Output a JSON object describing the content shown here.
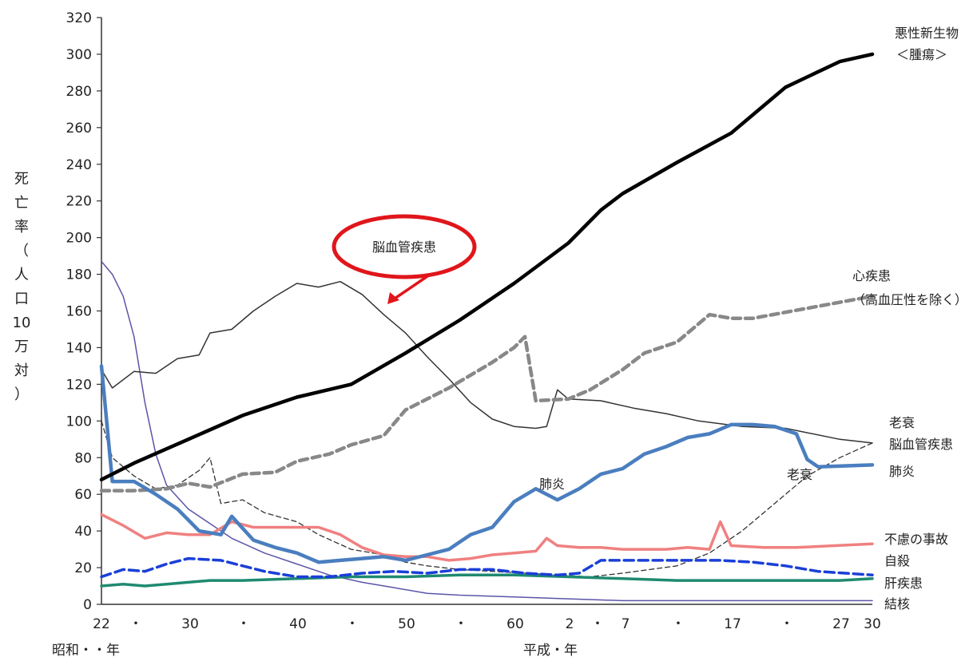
{
  "chart_data": {
    "type": "line",
    "ylabel": "死亡率（人口10万対）",
    "ylim": [
      0,
      320
    ],
    "yticks": [
      0,
      20,
      40,
      60,
      80,
      100,
      120,
      140,
      160,
      180,
      200,
      220,
      240,
      260,
      280,
      300,
      320
    ],
    "x_tick_labels": [
      "22",
      "・",
      "30",
      "・",
      "40",
      "・",
      "50",
      "・",
      "60",
      "2",
      "・",
      "7",
      "・",
      "17",
      "・",
      "27",
      "30"
    ],
    "x_era_labels": [
      "昭和・・年",
      "平成・年"
    ],
    "callout": "脳血管疾患",
    "series": [
      {
        "name": "悪性新生物<腫瘍>",
        "color": "#000000",
        "width": 4.5,
        "dash": "",
        "points": [
          [
            1947,
            68
          ],
          [
            1950,
            77
          ],
          [
            1955,
            90
          ],
          [
            1960,
            103
          ],
          [
            1965,
            113
          ],
          [
            1970,
            120
          ],
          [
            1975,
            137
          ],
          [
            1980,
            155
          ],
          [
            1985,
            175
          ],
          [
            1990,
            197
          ],
          [
            1993,
            215
          ],
          [
            1995,
            224
          ],
          [
            2000,
            241
          ],
          [
            2005,
            257
          ],
          [
            2010,
            282
          ],
          [
            2015,
            296
          ],
          [
            2018,
            300
          ]
        ]
      },
      {
        "name": "心疾患（高血圧性を除く）",
        "color": "#888888",
        "width": 4.5,
        "dash": "10,6",
        "points": [
          [
            1947,
            62
          ],
          [
            1950,
            62
          ],
          [
            1953,
            63
          ],
          [
            1955,
            66
          ],
          [
            1957,
            64
          ],
          [
            1960,
            71
          ],
          [
            1963,
            72
          ],
          [
            1965,
            78
          ],
          [
            1968,
            82
          ],
          [
            1970,
            87
          ],
          [
            1973,
            92
          ],
          [
            1975,
            106
          ],
          [
            1977,
            112
          ],
          [
            1979,
            118
          ],
          [
            1981,
            125
          ],
          [
            1983,
            132
          ],
          [
            1985,
            140
          ],
          [
            1986,
            146
          ],
          [
            1987,
            111
          ],
          [
            1990,
            112
          ],
          [
            1992,
            117
          ],
          [
            1995,
            128
          ],
          [
            1997,
            137
          ],
          [
            2000,
            143
          ],
          [
            2003,
            158
          ],
          [
            2005,
            156
          ],
          [
            2007,
            156
          ],
          [
            2018,
            168
          ]
        ]
      },
      {
        "name": "脳血管疾患",
        "color": "#333333",
        "width": 1.5,
        "dash": "",
        "points": [
          [
            1947,
            128
          ],
          [
            1948,
            118
          ],
          [
            1950,
            127
          ],
          [
            1952,
            126
          ],
          [
            1954,
            134
          ],
          [
            1956,
            136
          ],
          [
            1957,
            148
          ],
          [
            1959,
            150
          ],
          [
            1961,
            160
          ],
          [
            1963,
            168
          ],
          [
            1965,
            175
          ],
          [
            1967,
            173
          ],
          [
            1969,
            176
          ],
          [
            1971,
            169
          ],
          [
            1973,
            158
          ],
          [
            1975,
            148
          ],
          [
            1977,
            135
          ],
          [
            1979,
            123
          ],
          [
            1981,
            110
          ],
          [
            1983,
            101
          ],
          [
            1985,
            97
          ],
          [
            1987,
            96
          ],
          [
            1988,
            97
          ],
          [
            1989,
            117
          ],
          [
            1990,
            112
          ],
          [
            1993,
            111
          ],
          [
            1996,
            107
          ],
          [
            1999,
            104
          ],
          [
            2002,
            100
          ],
          [
            2006,
            97
          ],
          [
            2010,
            96
          ],
          [
            2015,
            90
          ],
          [
            2018,
            88
          ]
        ]
      },
      {
        "name": "肺炎",
        "color": "#4a7ebf",
        "width": 4.5,
        "dash": "",
        "points": [
          [
            1947,
            130
          ],
          [
            1948,
            67
          ],
          [
            1950,
            67
          ],
          [
            1952,
            60
          ],
          [
            1954,
            52
          ],
          [
            1956,
            40
          ],
          [
            1958,
            38
          ],
          [
            1959,
            48
          ],
          [
            1961,
            35
          ],
          [
            1963,
            31
          ],
          [
            1965,
            28
          ],
          [
            1967,
            23
          ],
          [
            1969,
            24
          ],
          [
            1971,
            25
          ],
          [
            1973,
            26
          ],
          [
            1975,
            24
          ],
          [
            1977,
            27
          ],
          [
            1979,
            30
          ],
          [
            1981,
            38
          ],
          [
            1983,
            42
          ],
          [
            1985,
            56
          ],
          [
            1987,
            63
          ],
          [
            1989,
            57
          ],
          [
            1991,
            63
          ],
          [
            1993,
            71
          ],
          [
            1995,
            74
          ],
          [
            1997,
            82
          ],
          [
            1999,
            86
          ],
          [
            2001,
            91
          ],
          [
            2003,
            93
          ],
          [
            2005,
            98
          ],
          [
            2007,
            98
          ],
          [
            2009,
            97
          ],
          [
            2011,
            93
          ],
          [
            2012,
            79
          ],
          [
            2013,
            75
          ],
          [
            2018,
            76
          ]
        ]
      },
      {
        "name": "老衰",
        "color": "#333333",
        "width": 1.3,
        "dash": "6,4",
        "points": [
          [
            1947,
            100
          ],
          [
            1948,
            80
          ],
          [
            1950,
            70
          ],
          [
            1952,
            63
          ],
          [
            1954,
            65
          ],
          [
            1956,
            73
          ],
          [
            1957,
            80
          ],
          [
            1958,
            55
          ],
          [
            1960,
            57
          ],
          [
            1962,
            50
          ],
          [
            1965,
            45
          ],
          [
            1967,
            38
          ],
          [
            1970,
            30
          ],
          [
            1973,
            27
          ],
          [
            1975,
            23
          ],
          [
            1977,
            21
          ],
          [
            1980,
            19
          ],
          [
            1983,
            18
          ],
          [
            1986,
            17
          ],
          [
            1989,
            16
          ],
          [
            1992,
            15
          ],
          [
            1995,
            17
          ],
          [
            2000,
            21
          ],
          [
            2003,
            28
          ],
          [
            2006,
            40
          ],
          [
            2009,
            55
          ],
          [
            2012,
            70
          ],
          [
            2015,
            80
          ],
          [
            2018,
            88
          ]
        ]
      },
      {
        "name": "結核",
        "color": "#5b55a8",
        "width": 1.5,
        "dash": "",
        "points": [
          [
            1947,
            187
          ],
          [
            1948,
            180
          ],
          [
            1949,
            168
          ],
          [
            1950,
            146
          ],
          [
            1951,
            110
          ],
          [
            1952,
            82
          ],
          [
            1953,
            65
          ],
          [
            1955,
            52
          ],
          [
            1957,
            44
          ],
          [
            1959,
            36
          ],
          [
            1962,
            28
          ],
          [
            1965,
            22
          ],
          [
            1968,
            16
          ],
          [
            1971,
            12
          ],
          [
            1974,
            9
          ],
          [
            1977,
            6
          ],
          [
            1980,
            5
          ],
          [
            1985,
            4
          ],
          [
            1990,
            3
          ],
          [
            1995,
            2
          ],
          [
            2000,
            2
          ],
          [
            2005,
            2
          ],
          [
            2010,
            2
          ],
          [
            2015,
            2
          ],
          [
            2018,
            2
          ]
        ]
      },
      {
        "name": "不慮の事故",
        "color": "#f08080",
        "width": 3.5,
        "dash": "",
        "points": [
          [
            1947,
            49
          ],
          [
            1949,
            43
          ],
          [
            1951,
            36
          ],
          [
            1953,
            39
          ],
          [
            1955,
            38
          ],
          [
            1957,
            38
          ],
          [
            1959,
            45
          ],
          [
            1961,
            42
          ],
          [
            1963,
            42
          ],
          [
            1965,
            42
          ],
          [
            1967,
            42
          ],
          [
            1969,
            38
          ],
          [
            1971,
            31
          ],
          [
            1973,
            27
          ],
          [
            1975,
            26
          ],
          [
            1977,
            26
          ],
          [
            1979,
            24
          ],
          [
            1981,
            25
          ],
          [
            1983,
            27
          ],
          [
            1985,
            28
          ],
          [
            1987,
            29
          ],
          [
            1988,
            36
          ],
          [
            1989,
            32
          ],
          [
            1991,
            31
          ],
          [
            1993,
            31
          ],
          [
            1995,
            30
          ],
          [
            1997,
            30
          ],
          [
            1999,
            30
          ],
          [
            2001,
            31
          ],
          [
            2003,
            30
          ],
          [
            2004,
            45
          ],
          [
            2005,
            32
          ],
          [
            2008,
            31
          ],
          [
            2011,
            31
          ],
          [
            2018,
            33
          ]
        ]
      },
      {
        "name": "自殺",
        "color": "#1a3fd8",
        "width": 3.5,
        "dash": "12,6",
        "points": [
          [
            1947,
            15
          ],
          [
            1949,
            19
          ],
          [
            1951,
            18
          ],
          [
            1953,
            22
          ],
          [
            1955,
            25
          ],
          [
            1958,
            24
          ],
          [
            1960,
            21
          ],
          [
            1962,
            18
          ],
          [
            1965,
            15
          ],
          [
            1968,
            15
          ],
          [
            1971,
            17
          ],
          [
            1974,
            18
          ],
          [
            1977,
            17
          ],
          [
            1980,
            19
          ],
          [
            1983,
            19
          ],
          [
            1986,
            17
          ],
          [
            1989,
            16
          ],
          [
            1991,
            17
          ],
          [
            1993,
            24
          ],
          [
            1995,
            24
          ],
          [
            1998,
            24
          ],
          [
            2001,
            24
          ],
          [
            2004,
            24
          ],
          [
            2007,
            23
          ],
          [
            2010,
            21
          ],
          [
            2013,
            18
          ],
          [
            2018,
            16
          ]
        ]
      },
      {
        "name": "肝疾患",
        "color": "#1f8a70",
        "width": 3.5,
        "dash": "",
        "points": [
          [
            1947,
            10
          ],
          [
            1949,
            11
          ],
          [
            1951,
            10
          ],
          [
            1953,
            11
          ],
          [
            1955,
            12
          ],
          [
            1957,
            13
          ],
          [
            1960,
            13
          ],
          [
            1965,
            14
          ],
          [
            1970,
            15
          ],
          [
            1975,
            15
          ],
          [
            1980,
            16
          ],
          [
            1985,
            16
          ],
          [
            1990,
            15
          ],
          [
            1995,
            14
          ],
          [
            2000,
            13
          ],
          [
            2005,
            13
          ],
          [
            2010,
            13
          ],
          [
            2015,
            13
          ],
          [
            2018,
            14
          ]
        ]
      }
    ]
  },
  "right_labels": {
    "cancer_1": "悪性新生物",
    "cancer_2": "＜腫瘍＞",
    "heart_1": "心疾患",
    "heart_2": "（高血圧性を除く）",
    "senility": "老衰",
    "stroke": "脳血管疾患",
    "pneumonia": "肺炎",
    "accident": "不慮の事故",
    "suicide": "自殺",
    "liver": "肝疾患",
    "tb": "結核"
  },
  "inline_labels": {
    "pneumonia": "肺炎",
    "senility": "老衰"
  }
}
